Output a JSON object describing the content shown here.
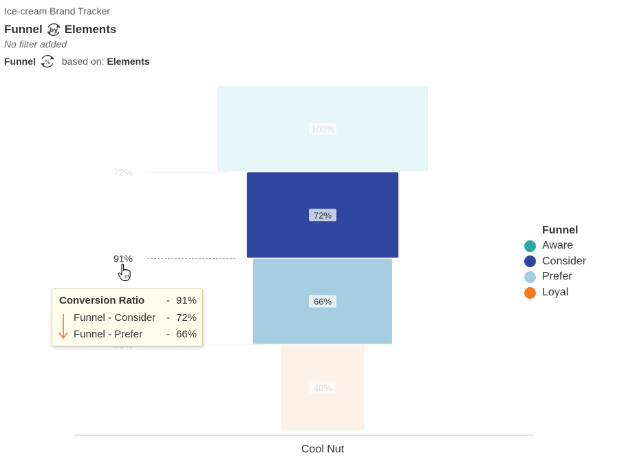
{
  "header": {
    "app_title": "Ice-cream Brand Tracker",
    "chart_title_left": "Funnel",
    "chart_title_icon_text": "by",
    "chart_title_right": "Elements",
    "filter_note": "No filter added",
    "basis_left": "Funnel",
    "basis_icon_text": "%",
    "basis_middle": "based on:",
    "basis_right": "Elements"
  },
  "colors": {
    "aware": "#2aa8a4",
    "consider": "#30479e",
    "prefer": "#a6cde2",
    "loyal": "#f97a1e",
    "aware_faded": "#e6f6f6",
    "loyal_faded": "#fef1e8"
  },
  "legend": {
    "title": "Funnel",
    "items": [
      {
        "label": "Aware",
        "color": "#2aa8a4"
      },
      {
        "label": "Consider",
        "color": "#30479e"
      },
      {
        "label": "Prefer",
        "color": "#a6cde2"
      },
      {
        "label": "Loyal",
        "color": "#f97a1e"
      }
    ]
  },
  "tooltip": {
    "title": "Conversion Ratio",
    "title_dash": "-",
    "title_value": "91%",
    "rows": [
      {
        "label": "Funnel - Consider",
        "dash": "-",
        "value": "72%"
      },
      {
        "label": "Funnel - Prefer",
        "dash": "-",
        "value": "66%"
      }
    ],
    "arrow_icon": "down-arrow-icon"
  },
  "cursor_icon": "hand-pointer-icon",
  "chart_data": {
    "type": "bar",
    "subtype": "funnel",
    "categories": [
      "Cool Nut"
    ],
    "xlabel": "Cool Nut",
    "series": [
      {
        "name": "Aware",
        "values": [
          100
        ],
        "label": "100%",
        "highlighted": false
      },
      {
        "name": "Consider",
        "values": [
          72
        ],
        "label": "72%",
        "highlighted": true
      },
      {
        "name": "Prefer",
        "values": [
          66
        ],
        "label": "66%",
        "highlighted": true
      },
      {
        "name": "Loyal",
        "values": [
          40
        ],
        "label": "40%",
        "highlighted": false
      }
    ],
    "conversion_ratios": [
      {
        "between": [
          "Aware",
          "Consider"
        ],
        "label": "72%",
        "highlighted": false
      },
      {
        "between": [
          "Consider",
          "Prefer"
        ],
        "label": "91%",
        "highlighted": true
      },
      {
        "between": [
          "Prefer",
          "Loyal"
        ],
        "label": "61%",
        "highlighted": false
      }
    ],
    "legend_position": "right",
    "grid": false
  }
}
